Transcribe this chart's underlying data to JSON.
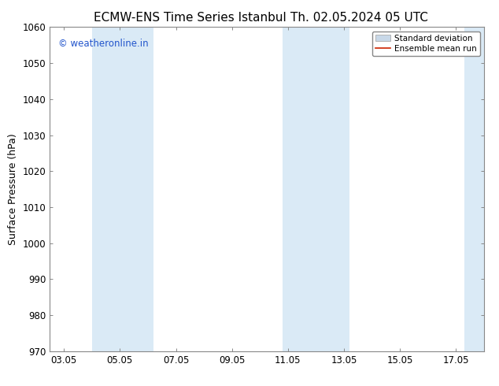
{
  "title_left": "ECMW-ENS Time Series Istanbul",
  "title_right": "Th. 02.05.2024 05 UTC",
  "ylabel": "Surface Pressure (hPa)",
  "ylim": [
    970,
    1060
  ],
  "yticks": [
    970,
    980,
    990,
    1000,
    1010,
    1020,
    1030,
    1040,
    1050,
    1060
  ],
  "xtick_labels": [
    "03.05",
    "05.05",
    "07.05",
    "09.05",
    "11.05",
    "13.05",
    "15.05",
    "17.05"
  ],
  "xtick_positions": [
    0,
    2,
    4,
    6,
    8,
    10,
    12,
    14
  ],
  "xlim": [
    -0.5,
    15.0
  ],
  "shaded_regions": [
    {
      "start": 1.0,
      "end": 3.2
    },
    {
      "start": 7.8,
      "end": 10.2
    },
    {
      "start": 14.3,
      "end": 15.0
    }
  ],
  "shaded_color": "#daeaf6",
  "watermark_text": "© weatheronline.in",
  "watermark_color": "#2255cc",
  "legend_std_dev_color": "#c8d8e8",
  "legend_mean_color": "#cc2200",
  "background_color": "#ffffff",
  "title_fontsize": 11,
  "ylabel_fontsize": 9,
  "tick_fontsize": 8.5
}
